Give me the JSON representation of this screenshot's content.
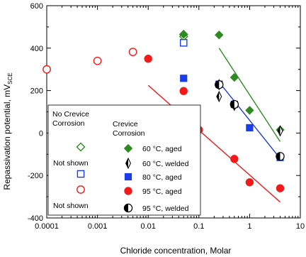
{
  "chart_data": {
    "type": "scatter",
    "xscale": "log",
    "xlim": [
      0.0001,
      10
    ],
    "ylim": [
      -400,
      600
    ],
    "grid": false,
    "xlabel": "Chloride concentration, Molar",
    "ylabel": {
      "main": "Repassivation potential, mV",
      "subscript": "SCE"
    },
    "x_ticks": [
      0.0001,
      0.001,
      0.01,
      0.1,
      1,
      10
    ],
    "x_tick_labels": [
      "0.0001",
      "0.001",
      "0.01",
      "0.1",
      "1",
      "10"
    ],
    "y_ticks": [
      -400,
      -200,
      0,
      200,
      400,
      600
    ],
    "y_tick_labels": [
      "-400",
      "-200",
      "0",
      "200",
      "400",
      "600"
    ],
    "legend": {
      "placement": "lower-left",
      "header_left": [
        "No Crevice",
        "Corrosion"
      ],
      "header_right": [
        "Crevice",
        "Corrosion"
      ],
      "not_shown_label": "Not shown"
    },
    "series": [
      {
        "name": "60 °C, aged",
        "color": "#2e8b22",
        "marker": "diamond",
        "points": [
          [
            0.05,
            465
          ],
          [
            0.25,
            462
          ],
          [
            0.5,
            262
          ],
          [
            1.0,
            107
          ],
          [
            4.0,
            15
          ]
        ],
        "open_points": [
          [
            0.05,
            465
          ],
          [
            0.05,
            455
          ]
        ],
        "trend": [
          [
            0.25,
            400
          ],
          [
            4.0,
            -40
          ]
        ]
      },
      {
        "name": "60 °C, welded",
        "color": "#000000",
        "marker": "thin-diamond",
        "points": [
          [
            0.25,
            172
          ],
          [
            0.25,
            228
          ],
          [
            0.5,
            130
          ],
          [
            4.0,
            10
          ]
        ],
        "open_points": []
      },
      {
        "name": "80 °C, aged",
        "color": "#1a3de8",
        "marker": "square",
        "points": [
          [
            0.05,
            258
          ],
          [
            0.25,
            230
          ],
          [
            0.5,
            135
          ],
          [
            1.0,
            25
          ],
          [
            4.0,
            -115
          ]
        ],
        "open_points": [
          [
            0.05,
            425
          ]
        ],
        "trend": [
          [
            0.25,
            240
          ],
          [
            4.0,
            -120
          ]
        ]
      },
      {
        "name": "95 °C, aged",
        "color": "#f01a1a",
        "marker": "circle",
        "points": [
          [
            0.01,
            350
          ],
          [
            0.05,
            198
          ],
          [
            0.1,
            15
          ],
          [
            0.5,
            -122
          ],
          [
            1.0,
            -232
          ],
          [
            4.0,
            -260
          ]
        ],
        "open_points": [
          [
            0.0001,
            300
          ],
          [
            0.001,
            340
          ],
          [
            0.005,
            382
          ]
        ],
        "trend": [
          [
            0.01,
            225
          ],
          [
            4.0,
            -325
          ]
        ]
      },
      {
        "name": "95 °C, welded",
        "color": "#000000",
        "marker": "half-circle",
        "points": [
          [
            0.25,
            228
          ],
          [
            0.5,
            135
          ],
          [
            4.0,
            -110
          ]
        ],
        "open_points": []
      }
    ]
  }
}
